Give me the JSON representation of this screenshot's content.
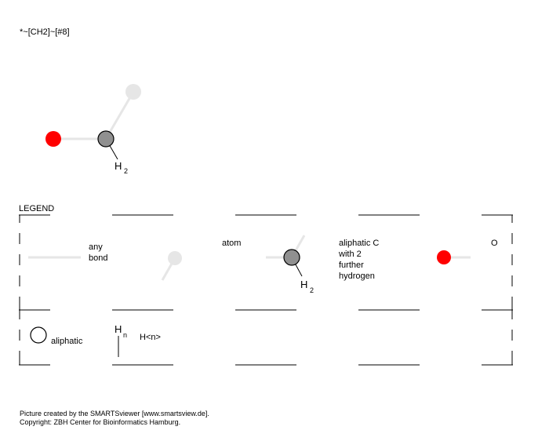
{
  "smarts": "*~[CH2]~[#8]",
  "molecule": {
    "atoms": [
      {
        "id": "wildcard",
        "label": ""
      },
      {
        "id": "ch2",
        "label": "H",
        "subscript": "2"
      },
      {
        "id": "oxygen",
        "label": ""
      }
    ]
  },
  "legend": {
    "title": "LEGEND",
    "any_bond": [
      "any",
      "bond"
    ],
    "atom": "atom",
    "ch2": {
      "label": "H",
      "subscript": "2",
      "description": [
        "aliphatic C",
        "with 2",
        "further",
        "hydrogen"
      ]
    },
    "oxygen": "O",
    "aliphatic": "aliphatic",
    "hn": {
      "label": "H",
      "subscript": "n",
      "description": "H<n>"
    }
  },
  "footer": {
    "line1": "Picture created by the SMARTSviewer [www.smartsview.de].",
    "line2": "Copyright: ZBH Center for Bioinformatics Hamburg."
  },
  "colors": {
    "wildcard_atom": "#e6e6e6",
    "carbon_atom": "#909090",
    "oxygen_atom": "#ff0000",
    "any_bond": "#e6e6e6",
    "frame": "#000000"
  }
}
